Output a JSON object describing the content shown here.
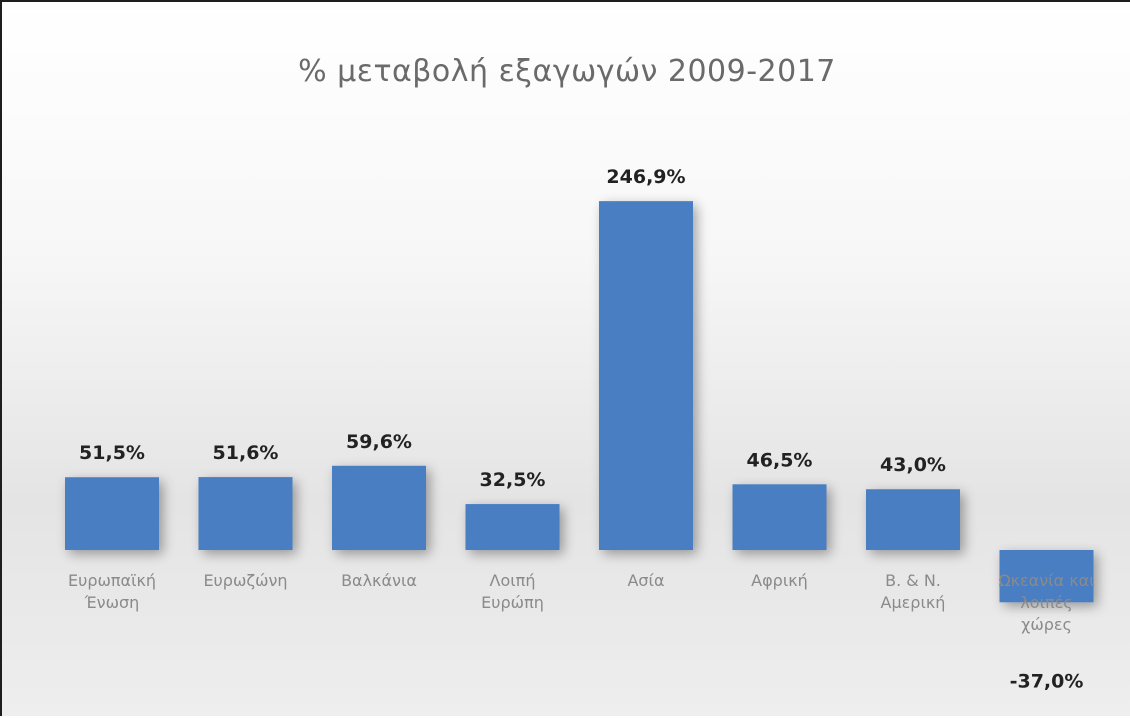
{
  "chart_data": {
    "type": "bar",
    "title": "% μεταβολή εξαγωγών 2009-2017",
    "categories": [
      "Ευρωπαϊκή Ένωση",
      "Ευρωζώνη",
      "Βαλκάνια",
      "Λοιπή Ευρώπη",
      "Ασία",
      "Αφρική",
      "Β. & Ν. Αμερική",
      "Ωκεανία και λοιπές χώρες"
    ],
    "values": [
      51.5,
      51.6,
      59.6,
      32.5,
      246.9,
      46.5,
      43.0,
      -37.0
    ],
    "data_labels": [
      "51,5%",
      "51,6%",
      "59,6%",
      "32,5%",
      "246,9%",
      "46,5%",
      "43,0%",
      "-37,0%"
    ],
    "xlabel": "",
    "ylabel": "",
    "ylim": [
      -40,
      250
    ],
    "grid": false,
    "legend": "none",
    "bar_color": "#4a7ec2"
  }
}
